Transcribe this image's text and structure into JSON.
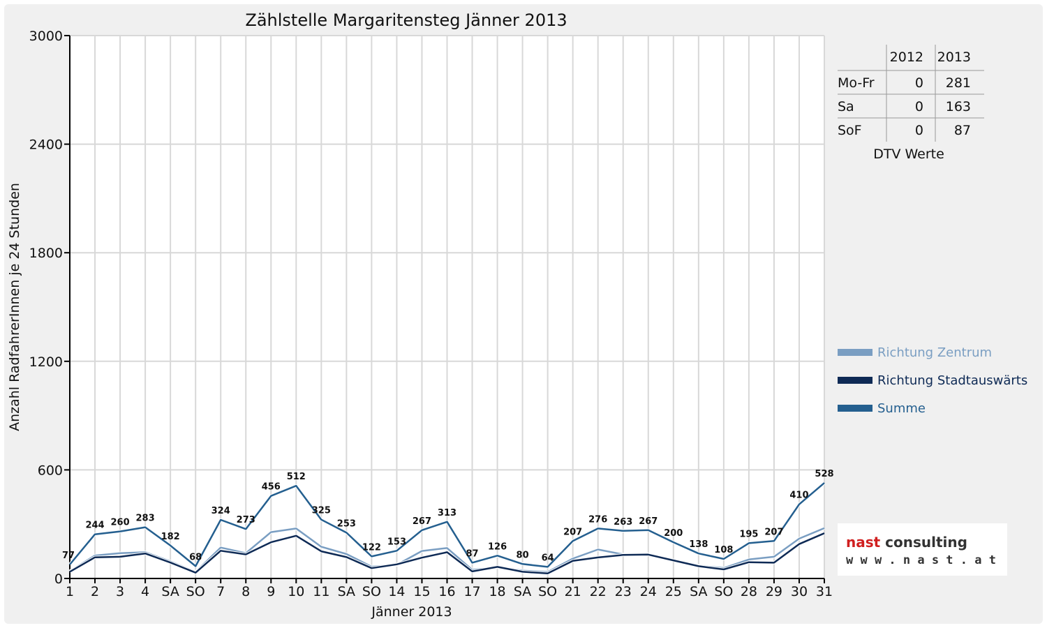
{
  "chart_data": {
    "type": "line",
    "title": "Zählstelle Margaritensteg Jänner 2013",
    "xlabel": "Jänner 2013",
    "ylabel": "Anzahl RadfahrerInnen je 24 Stunden",
    "ylim": [
      0,
      3000
    ],
    "yticks": [
      0,
      600,
      1200,
      1800,
      2400,
      3000
    ],
    "categories": [
      "1",
      "2",
      "3",
      "4",
      "SA",
      "SO",
      "7",
      "8",
      "9",
      "10",
      "11",
      "SA",
      "SO",
      "14",
      "15",
      "16",
      "17",
      "18",
      "SA",
      "SO",
      "21",
      "22",
      "23",
      "24",
      "25",
      "SA",
      "SO",
      "28",
      "29",
      "30",
      "31"
    ],
    "holiday_categories": [
      0,
      5,
      12,
      19,
      26
    ],
    "grid": true,
    "legend_position": "right",
    "series": [
      {
        "name": "Richtung Zentrum",
        "color": "#7a9ec2",
        "values": [
          40,
          127,
          140,
          145,
          94,
          36,
          171,
          140,
          256,
          276,
          175,
          135,
          65,
          75,
          152,
          168,
          48,
          62,
          43,
          36,
          110,
          160,
          133,
          135,
          100,
          70,
          58,
          105,
          120,
          220,
          278
        ]
      },
      {
        "name": "Richtung Stadtauswärts",
        "color": "#0e2a55",
        "values": [
          37,
          117,
          120,
          138,
          88,
          32,
          153,
          133,
          200,
          236,
          150,
          118,
          57,
          78,
          115,
          145,
          39,
          64,
          37,
          28,
          97,
          116,
          130,
          132,
          100,
          68,
          50,
          90,
          87,
          190,
          250
        ]
      },
      {
        "name": "Summe",
        "color": "#245f8f",
        "values": [
          77,
          244,
          260,
          283,
          182,
          68,
          324,
          273,
          456,
          512,
          325,
          253,
          122,
          153,
          267,
          313,
          87,
          126,
          80,
          64,
          207,
          276,
          263,
          267,
          200,
          138,
          108,
          195,
          207,
          410,
          528
        ]
      }
    ],
    "data_labels": [
      77,
      244,
      260,
      283,
      182,
      68,
      324,
      273,
      456,
      512,
      325,
      253,
      122,
      153,
      267,
      313,
      87,
      126,
      80,
      64,
      207,
      276,
      263,
      267,
      200,
      138,
      108,
      195,
      207,
      410,
      528
    ]
  },
  "dtv_table": {
    "columns": [
      "",
      "2012",
      "2013"
    ],
    "rows": [
      {
        "label": "Mo-Fr",
        "v2012": "0",
        "v2013": "281"
      },
      {
        "label": "Sa",
        "v2012": "0",
        "v2013": "163"
      },
      {
        "label": "SoF",
        "v2012": "0",
        "v2013": "87"
      }
    ],
    "caption": "DTV Werte"
  },
  "logo": {
    "name": "nast consulting",
    "url": "w w w . n a s t . a t"
  },
  "colors": {
    "holiday": "#e00000",
    "grid": "#d8d8d8",
    "background": "#f0f0f0",
    "plot": "#ffffff"
  }
}
